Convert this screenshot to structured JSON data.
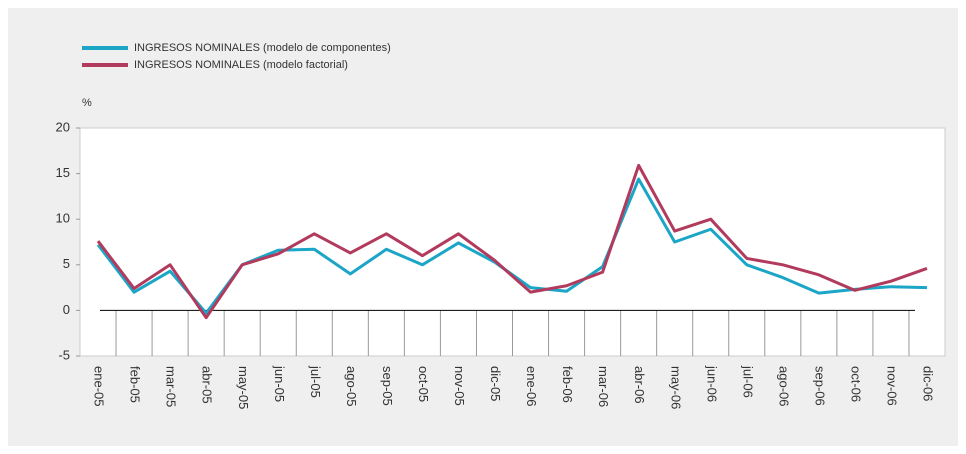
{
  "chart_data": {
    "type": "line",
    "categories": [
      "ene-05",
      "feb-05",
      "mar-05",
      "abr-05",
      "may-05",
      "jun-05",
      "jul-05",
      "ago-05",
      "sep-05",
      "oct-05",
      "nov-05",
      "dic-05",
      "ene-06",
      "feb-06",
      "mar-06",
      "abr-06",
      "may-06",
      "jun-06",
      "jul-06",
      "ago-06",
      "sep-06",
      "oct-06",
      "nov-06",
      "dic-06"
    ],
    "series": [
      {
        "name": "INGRESOS NOMINALES (modelo de componentes)",
        "color": "#1ba5c6",
        "values": [
          7.2,
          2.0,
          4.3,
          -0.3,
          5.0,
          6.6,
          6.7,
          4.0,
          6.7,
          5.0,
          7.4,
          5.3,
          2.5,
          2.1,
          4.8,
          14.4,
          7.5,
          8.9,
          5.0,
          3.6,
          1.9,
          2.3,
          2.6,
          2.5
        ]
      },
      {
        "name": "INGRESOS NOMINALES (modelo factorial)",
        "color": "#b23a5c",
        "values": [
          7.6,
          2.4,
          5.0,
          -0.8,
          5.0,
          6.2,
          8.4,
          6.3,
          8.4,
          6.0,
          8.4,
          5.5,
          2.0,
          2.7,
          4.2,
          15.9,
          8.7,
          10.0,
          5.7,
          5.0,
          3.9,
          2.2,
          3.2,
          4.6
        ]
      }
    ],
    "y_label": "%",
    "ylim": [
      -5,
      20
    ],
    "yticks": [
      -5,
      0,
      5,
      10,
      15,
      20
    ],
    "grid": false
  }
}
